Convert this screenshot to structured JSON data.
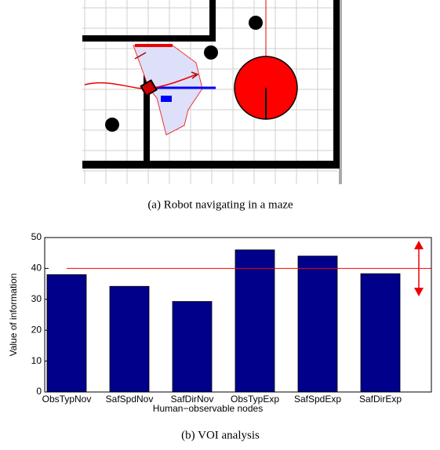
{
  "subfigure_a": {
    "caption": "(a) Robot navigating in a maze"
  },
  "chart_data": {
    "type": "bar",
    "caption": "(b) VOI analysis",
    "ylabel": "Value of information",
    "xlabel": "Human−observable nodes",
    "categories": [
      "ObsTypNov",
      "SafSpdNov",
      "SafDirNov",
      "ObsTypExp",
      "SafSpdExp",
      "SafDirExp"
    ],
    "values": [
      38,
      34.2,
      29.3,
      46,
      44,
      38.3
    ],
    "color": "#00008b",
    "threshold": 40,
    "threshold_color": "#ff0000",
    "ylim": [
      0,
      50
    ],
    "yticks": [
      0,
      10,
      20,
      30,
      40,
      50
    ]
  }
}
